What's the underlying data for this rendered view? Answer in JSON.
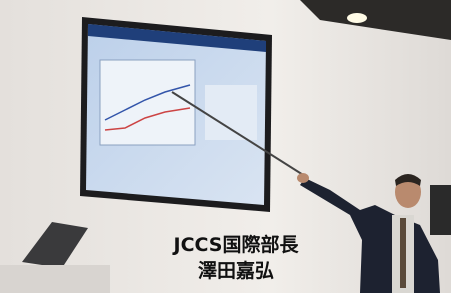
{
  "caption": {
    "lines": [
      "JCCS国際部長",
      "澤田嘉弘"
    ]
  }
}
